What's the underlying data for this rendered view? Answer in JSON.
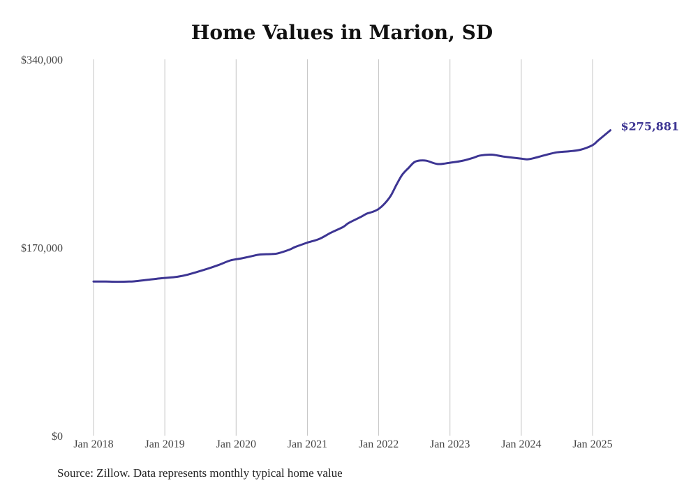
{
  "chart_data": {
    "type": "line",
    "title": "Home Values in Marion, SD",
    "xlabel": "",
    "ylabel": "",
    "ylim": [
      0,
      340000
    ],
    "y_ticks": [
      {
        "value": 0,
        "label": "$0"
      },
      {
        "value": 170000,
        "label": "$170,000"
      },
      {
        "value": 340000,
        "label": "$340,000"
      }
    ],
    "x_ticks": [
      {
        "value": 2018,
        "label": "Jan 2018"
      },
      {
        "value": 2019,
        "label": "Jan 2019"
      },
      {
        "value": 2020,
        "label": "Jan 2020"
      },
      {
        "value": 2021,
        "label": "Jan 2021"
      },
      {
        "value": 2022,
        "label": "Jan 2022"
      },
      {
        "value": 2023,
        "label": "Jan 2023"
      },
      {
        "value": 2024,
        "label": "Jan 2024"
      },
      {
        "value": 2025,
        "label": "Jan 2025"
      }
    ],
    "xlim": [
      2018,
      2025.25
    ],
    "grid": "vertical",
    "line_color": "#3d3593",
    "series": [
      {
        "x": [
          2018.0,
          2018.17,
          2018.33,
          2018.5,
          2018.58,
          2018.75,
          2018.92,
          2019.0,
          2019.17,
          2019.33,
          2019.58,
          2019.75,
          2019.92,
          2020.08,
          2020.25,
          2020.33,
          2020.5,
          2020.58,
          2020.75,
          2020.83,
          2021.0,
          2021.17,
          2021.33,
          2021.5,
          2021.58,
          2021.75,
          2021.83,
          2021.92,
          2022.0,
          2022.08,
          2022.17,
          2022.25,
          2022.33,
          2022.42,
          2022.5,
          2022.58,
          2022.67,
          2022.83,
          2023.0,
          2023.17,
          2023.33,
          2023.42,
          2023.58,
          2023.75,
          2024.0,
          2024.08,
          2024.17,
          2024.33,
          2024.5,
          2024.67,
          2024.83,
          2025.0,
          2025.08,
          2025.25
        ],
        "values": [
          139300,
          139200,
          139000,
          139200,
          139500,
          140700,
          142000,
          142500,
          143500,
          145600,
          150400,
          154100,
          158300,
          160200,
          162600,
          163600,
          164100,
          164600,
          168100,
          170500,
          174400,
          177800,
          183400,
          188500,
          192200,
          197600,
          200500,
          202300,
          204900,
          209400,
          216800,
          226800,
          235700,
          242000,
          247100,
          248600,
          248400,
          245400,
          246600,
          248300,
          251100,
          253100,
          253900,
          252200,
          250300,
          249700,
          250600,
          253400,
          256000,
          256900,
          258300,
          262500,
          266800,
          275881
        ],
        "end_label": "$275,881"
      }
    ]
  },
  "footer": {
    "source": "Source: Zillow. Data represents monthly typical home value"
  }
}
